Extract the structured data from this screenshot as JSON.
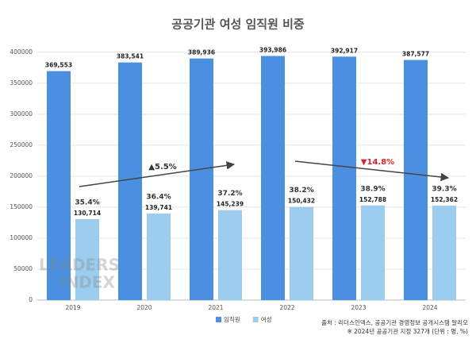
{
  "chart_data": {
    "type": "bar",
    "title": "공공기관 여성 임직원 비중",
    "categories": [
      "2019",
      "2020",
      "2021",
      "2022",
      "2023",
      "2024"
    ],
    "series": [
      {
        "name": "임직원",
        "color": "#4a8fe0",
        "values": [
          369553,
          383541,
          389936,
          393986,
          392917,
          387577
        ],
        "value_labels": [
          "369,553",
          "383,541",
          "389,936",
          "393,986",
          "392,917",
          "387,577"
        ]
      },
      {
        "name": "여성",
        "color": "#9ccdee",
        "values": [
          130714,
          139741,
          145239,
          150432,
          152788,
          152362
        ],
        "value_labels": [
          "130,714",
          "139,741",
          "145,239",
          "150,432",
          "152,788",
          "152,362"
        ]
      }
    ],
    "share": {
      "values": [
        35.4,
        36.4,
        37.2,
        38.2,
        38.9,
        39.3
      ],
      "value_labels": [
        "35.4%",
        "36.4%",
        "37.2%",
        "38.2%",
        "38.9%",
        "39.3%"
      ]
    },
    "annotations": [
      "▲5.5%",
      "▼14.8%"
    ],
    "ylim": [
      0,
      410000
    ],
    "yticks": [
      0,
      50000,
      100000,
      150000,
      200000,
      250000,
      300000,
      350000,
      400000
    ],
    "grid": true,
    "legend": "bottom",
    "source": [
      "출처 : 리더스인덱스, 공공기관 경영정보 공개시스템 알리오",
      "※ 2024년 공공기관 지정 327개 (단위 : 명, %)"
    ],
    "watermark": [
      "LEADERS",
      "INDEX"
    ]
  }
}
